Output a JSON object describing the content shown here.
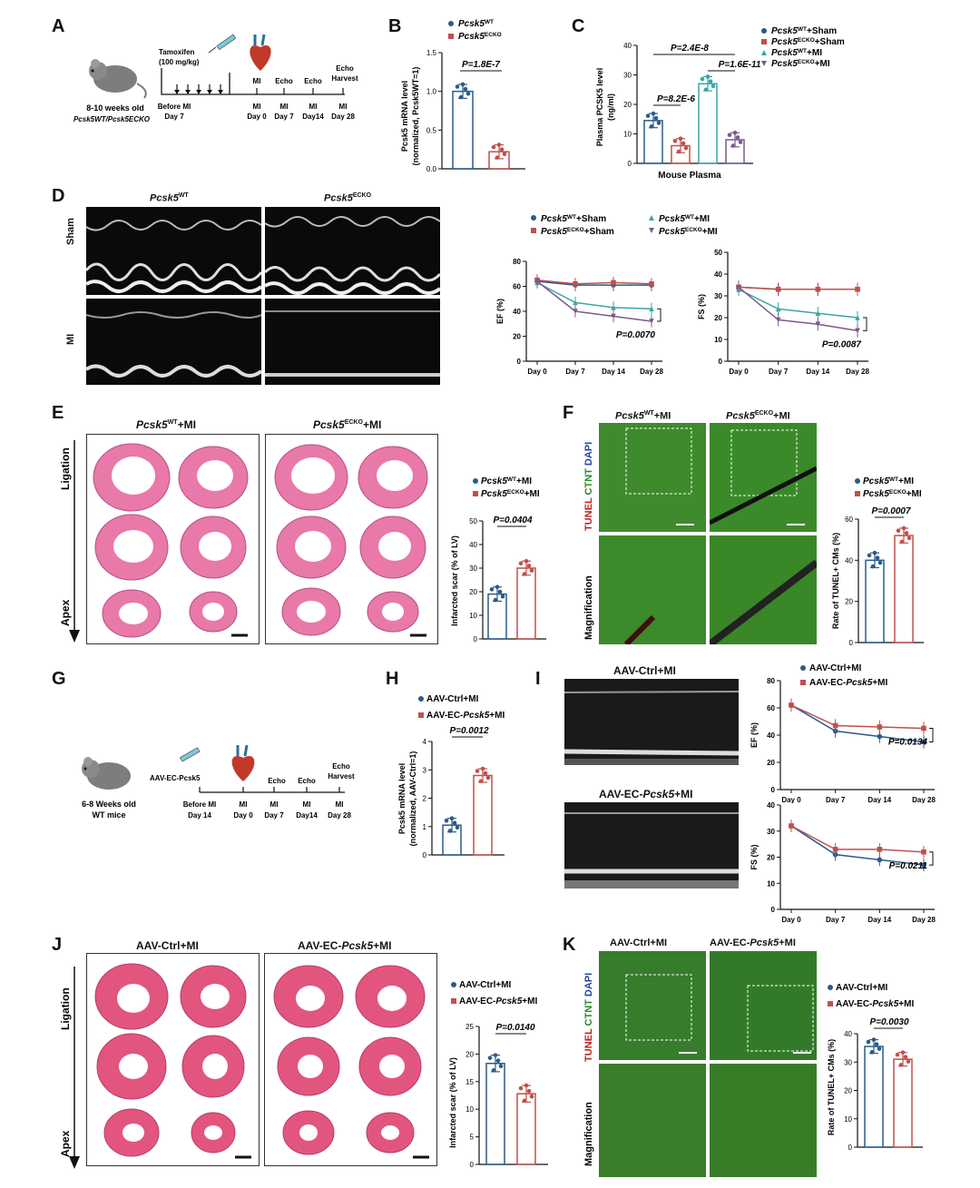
{
  "panels": [
    "A",
    "B",
    "C",
    "D",
    "E",
    "F",
    "G",
    "H",
    "I",
    "J",
    "K"
  ],
  "A": {
    "mouse_text_1": "8-10 weeks old",
    "mouse_text_2": "Pcsk5WT/Pcsk5ECKO",
    "tamoxifen_1": "Tamoxifen",
    "tamoxifen_2": "(100 mg/kg)",
    "events": [
      "MI",
      "Echo",
      "Echo",
      "Echo Harvest"
    ],
    "times_top": [
      "Before MI",
      "MI",
      "MI",
      "MI",
      "MI"
    ],
    "times_bottom": [
      "Day 7",
      "Day 0",
      "Day 7",
      "Day14",
      "Day 28"
    ]
  },
  "B": {
    "legend": [
      "Pcsk5WT",
      "Pcsk5ECKO"
    ],
    "ylabel_1": "Pcsk5 mRNA level",
    "ylabel_2": "(normalized, Pcsk5WT=1)",
    "pvalue": "P=1.8E-7",
    "chart_data": {
      "type": "bar",
      "categories": [
        "Pcsk5WT",
        "Pcsk5ECKO"
      ],
      "values": [
        1.0,
        0.22
      ],
      "ylim": [
        0,
        1.5
      ],
      "yticks": [
        "0.0",
        "0.5",
        "1.0",
        "1.5"
      ],
      "colors": [
        "#2a5b8a",
        "#c0504d"
      ]
    }
  },
  "C": {
    "legend": [
      "Pcsk5WT+Sham",
      "Pcsk5ECKO+Sham",
      "Pcsk5WT+MI",
      "Pcsk5ECKO+MI"
    ],
    "ylabel_1": "Plasma PCSK5  level",
    "ylabel_2": "(ng/ml)",
    "xlabel": "Mouse Plasma",
    "pvalues": [
      "P=2.4E-8",
      "P=8.2E-6",
      "P=1.6E-11"
    ],
    "chart_data": {
      "type": "bar",
      "categories": [
        "Pcsk5WT+Sham",
        "Pcsk5ECKO+Sham",
        "Pcsk5WT+MI",
        "Pcsk5ECKO+MI"
      ],
      "values": [
        14.5,
        6.0,
        27.0,
        8.0
      ],
      "ylim": [
        0,
        40
      ],
      "yticks": [
        "0",
        "10",
        "20",
        "30",
        "40"
      ],
      "colors": [
        "#2a5b8a",
        "#c0504d",
        "#3aa5a5",
        "#7b5a8e"
      ]
    }
  },
  "D": {
    "col_titles": [
      "Pcsk5WT",
      "Pcsk5ECKO"
    ],
    "row_titles": [
      "Sham",
      "MI"
    ],
    "legend": [
      "Pcsk5WT+Sham",
      "Pcsk5WT+MI",
      "Pcsk5ECKO+Sham",
      "Pcsk5ECKO+MI"
    ],
    "chart_data": [
      {
        "type": "line",
        "ylabel": "EF (%)",
        "x": [
          "Day 0",
          "Day 7",
          "Day 14",
          "Day 28"
        ],
        "ylim": [
          0,
          80
        ],
        "yticks": [
          "0",
          "20",
          "40",
          "60",
          "80"
        ],
        "pvalue": "P=0.0070",
        "series": [
          {
            "name": "Pcsk5WT+Sham",
            "values": [
              64,
              61,
              61,
              61
            ],
            "color": "#2a5b8a"
          },
          {
            "name": "Pcsk5ECKO+Sham",
            "values": [
              65,
              62,
              63,
              62
            ],
            "color": "#c0504d"
          },
          {
            "name": "Pcsk5WT+MI",
            "values": [
              63,
              47,
              43,
              42
            ],
            "color": "#3aa5a5"
          },
          {
            "name": "Pcsk5ECKO+MI",
            "values": [
              64,
              40,
              36,
              32
            ],
            "color": "#7b5a8e"
          }
        ]
      },
      {
        "type": "line",
        "ylabel": "FS (%)",
        "x": [
          "Day 0",
          "Day 7",
          "Day 14",
          "Day 28"
        ],
        "ylim": [
          0,
          50
        ],
        "yticks": [
          "0",
          "10",
          "20",
          "30",
          "40",
          "50"
        ],
        "pvalue": "P=0.0087",
        "series": [
          {
            "name": "Pcsk5WT+Sham",
            "values": [
              34,
              33,
              33,
              33
            ],
            "color": "#2a5b8a"
          },
          {
            "name": "Pcsk5ECKO+Sham",
            "values": [
              34,
              33,
              33,
              33
            ],
            "color": "#c0504d"
          },
          {
            "name": "Pcsk5WT+MI",
            "values": [
              33,
              24,
              22,
              20
            ],
            "color": "#3aa5a5"
          },
          {
            "name": "Pcsk5ECKO+MI",
            "values": [
              34,
              19,
              17,
              14
            ],
            "color": "#7b5a8e"
          }
        ]
      }
    ]
  },
  "E": {
    "col_titles": [
      "Pcsk5WT+MI",
      "Pcsk5ECKO+MI"
    ],
    "ligation": "Ligation",
    "apex": "Apex",
    "legend": [
      "Pcsk5WT+MI",
      "Pcsk5ECKO+MI"
    ],
    "ylabel": "Infarcted scar (% of LV)",
    "pvalue": "P=0.0404",
    "chart_data": {
      "type": "bar",
      "categories": [
        "Pcsk5WT+MI",
        "Pcsk5ECKO+MI"
      ],
      "values": [
        19,
        30
      ],
      "ylim": [
        0,
        50
      ],
      "yticks": [
        "0",
        "10",
        "20",
        "30",
        "40",
        "50"
      ],
      "colors": [
        "#2a5b8a",
        "#c0504d"
      ]
    }
  },
  "F": {
    "col_titles": [
      "Pcsk5WT+MI",
      "Pcsk5ECKO+MI"
    ],
    "side_label": [
      "TUNEL",
      "CTNT",
      "DAPI"
    ],
    "mag_label": "Magnification",
    "legend": [
      "Pcsk5WT+MI",
      "Pcsk5ECKO+MI"
    ],
    "ylabel": "Rate of TUNEL+ CMs (%)",
    "pvalue": "P=0.0007",
    "chart_data": {
      "type": "bar",
      "categories": [
        "Pcsk5WT+MI",
        "Pcsk5ECKO+MI"
      ],
      "values": [
        40,
        52
      ],
      "ylim": [
        0,
        60
      ],
      "yticks": [
        "0",
        "20",
        "40",
        "60"
      ],
      "colors": [
        "#2a5b8a",
        "#c0504d"
      ]
    }
  },
  "G": {
    "mouse_text_1": "6-8 Weeks old",
    "mouse_text_2": "WT mice",
    "injection": "AAV-EC-Pcsk5",
    "events": [
      "Echo",
      "Echo",
      "Echo Harvest"
    ],
    "times_top": [
      "Before MI",
      "MI",
      "MI",
      "MI",
      "MI"
    ],
    "times_bottom": [
      "Day 14",
      "Day 0",
      "Day 7",
      "Day14",
      "Day 28"
    ]
  },
  "H": {
    "legend": [
      "AAV-Ctrl+MI",
      "AAV-EC-Pcsk5+MI"
    ],
    "ylabel_1": "Pcsk5 mRNA level",
    "ylabel_2": "(normalized, AAV-Ctrl=1)",
    "pvalue": "P=0.0012",
    "chart_data": {
      "type": "bar",
      "categories": [
        "AAV-Ctrl+MI",
        "AAV-EC-Pcsk5+MI"
      ],
      "values": [
        1.05,
        2.8
      ],
      "ylim": [
        0,
        4
      ],
      "yticks": [
        "0",
        "1",
        "2",
        "3",
        "4"
      ],
      "colors": [
        "#2a5b8a",
        "#c0504d"
      ]
    }
  },
  "I": {
    "echo_titles": [
      "AAV-Ctrl+MI",
      "AAV-EC-Pcsk5+MI"
    ],
    "legend": [
      "AAV-Ctrl+MI",
      "AAV-EC-Pcsk5+MI"
    ],
    "chart_data": [
      {
        "type": "line",
        "ylabel": "EF (%)",
        "x": [
          "Day 0",
          "Day 7",
          "Day 14",
          "Day 28"
        ],
        "ylim": [
          0,
          80
        ],
        "yticks": [
          "0",
          "20",
          "40",
          "60",
          "80"
        ],
        "pvalue": "P=0.0134",
        "series": [
          {
            "name": "AAV-Ctrl+MI",
            "values": [
              62,
              43,
              39,
              35
            ],
            "color": "#2a5b8a"
          },
          {
            "name": "AAV-EC-Pcsk5+MI",
            "values": [
              62,
              47,
              46,
              45
            ],
            "color": "#c0504d"
          }
        ]
      },
      {
        "type": "line",
        "ylabel": "FS (%)",
        "x": [
          "Day 0",
          "Day 7",
          "Day 14",
          "Day 28"
        ],
        "ylim": [
          0,
          40
        ],
        "yticks": [
          "0",
          "10",
          "20",
          "30",
          "40"
        ],
        "pvalue": "P=0.0211",
        "series": [
          {
            "name": "AAV-Ctrl+MI",
            "values": [
              32,
              21,
              19,
              17
            ],
            "color": "#2a5b8a"
          },
          {
            "name": "AAV-EC-Pcsk5+MI",
            "values": [
              32,
              23,
              23,
              22
            ],
            "color": "#c0504d"
          }
        ]
      }
    ]
  },
  "J": {
    "col_titles": [
      "AAV-Ctrl+MI",
      "AAV-EC-Pcsk5+MI"
    ],
    "ligation": "Ligation",
    "apex": "Apex",
    "legend": [
      "AAV-Ctrl+MI",
      "AAV-EC-Pcsk5+MI"
    ],
    "ylabel": "Infarcted scar (% of LV)",
    "pvalue": "P=0.0140",
    "chart_data": {
      "type": "bar",
      "categories": [
        "AAV-Ctrl+MI",
        "AAV-EC-Pcsk5+MI"
      ],
      "values": [
        18.3,
        12.8
      ],
      "ylim": [
        0,
        25
      ],
      "yticks": [
        "0",
        "5",
        "10",
        "15",
        "20",
        "25"
      ],
      "colors": [
        "#2a5b8a",
        "#c0504d"
      ]
    }
  },
  "K": {
    "col_titles": [
      "AAV-Ctrl+MI",
      "AAV-EC-Pcsk5+MI"
    ],
    "side_label": [
      "TUNEL",
      "CTNT",
      "DAPI"
    ],
    "mag_label": "Magnification",
    "legend": [
      "AAV-Ctrl+MI",
      "AAV-EC-Pcsk5+MI"
    ],
    "ylabel": "Rate of TUNEL+ CMs (%)",
    "pvalue": "P=0.0030",
    "chart_data": {
      "type": "bar",
      "categories": [
        "AAV-Ctrl+MI",
        "AAV-EC-Pcsk5+MI"
      ],
      "values": [
        35.5,
        31
      ],
      "ylim": [
        0,
        40
      ],
      "yticks": [
        "0",
        "10",
        "20",
        "30",
        "40"
      ],
      "colors": [
        "#2a5b8a",
        "#c0504d"
      ]
    }
  }
}
